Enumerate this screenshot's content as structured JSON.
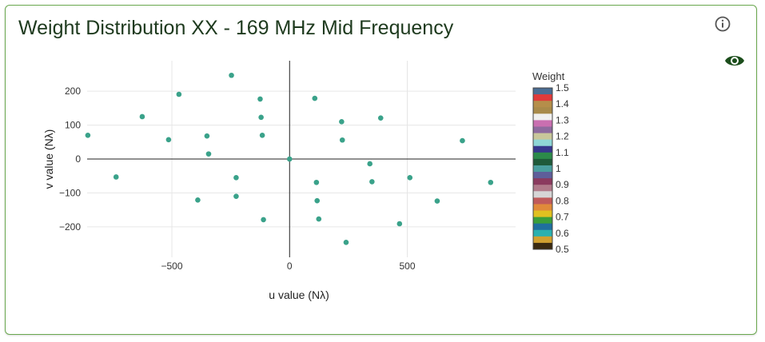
{
  "card": {
    "title": "Weight Distribution XX - 169 MHz Mid Frequency",
    "info_icon": "info-circle-icon",
    "visibility_icon": "eye-icon"
  },
  "colors": {
    "border": "#6aa84f",
    "title": "#1e3a1e",
    "point": "#3aa28a",
    "eye": "#1b4d1b"
  },
  "chart_data": {
    "type": "scatter",
    "title": "",
    "xlabel": "u value (Nλ)",
    "ylabel": "v value (Nλ)",
    "xlim": [
      -860,
      960
    ],
    "ylim": [
      -290,
      290
    ],
    "xticks": [
      -500,
      0,
      500
    ],
    "xtick_labels": [
      "−500",
      "0",
      "500"
    ],
    "yticks": [
      -200,
      -100,
      0,
      100,
      200
    ],
    "ytick_labels": [
      "−200",
      "−100",
      "0",
      "100",
      "200"
    ],
    "grid": true,
    "zero_lines": true,
    "colorbar": {
      "title": "Weight",
      "min": 0.5,
      "max": 1.5,
      "ticks": [
        "1.5",
        "1.4",
        "1.3",
        "1.2",
        "1.1",
        "1",
        "0.9",
        "0.8",
        "0.7",
        "0.6",
        "0.5"
      ]
    },
    "points": [
      {
        "x": -247,
        "y": 247
      },
      {
        "x": -470,
        "y": 191
      },
      {
        "x": -125,
        "y": 177
      },
      {
        "x": 107,
        "y": 179
      },
      {
        "x": -626,
        "y": 125
      },
      {
        "x": -121,
        "y": 123
      },
      {
        "x": 387,
        "y": 121
      },
      {
        "x": 221,
        "y": 110
      },
      {
        "x": -857,
        "y": 70
      },
      {
        "x": -351,
        "y": 68
      },
      {
        "x": -116,
        "y": 70
      },
      {
        "x": -514,
        "y": 57
      },
      {
        "x": 224,
        "y": 56
      },
      {
        "x": 734,
        "y": 54
      },
      {
        "x": -344,
        "y": 15
      },
      {
        "x": 0,
        "y": 0
      },
      {
        "x": 341,
        "y": -14
      },
      {
        "x": -737,
        "y": -53
      },
      {
        "x": -227,
        "y": -55
      },
      {
        "x": 511,
        "y": -55
      },
      {
        "x": 114,
        "y": -69
      },
      {
        "x": 350,
        "y": -67
      },
      {
        "x": 854,
        "y": -69
      },
      {
        "x": -227,
        "y": -110
      },
      {
        "x": -390,
        "y": -121
      },
      {
        "x": 117,
        "y": -123
      },
      {
        "x": 627,
        "y": -124
      },
      {
        "x": -111,
        "y": -179
      },
      {
        "x": 124,
        "y": -177
      },
      {
        "x": 467,
        "y": -191
      },
      {
        "x": 240,
        "y": -246
      }
    ]
  }
}
